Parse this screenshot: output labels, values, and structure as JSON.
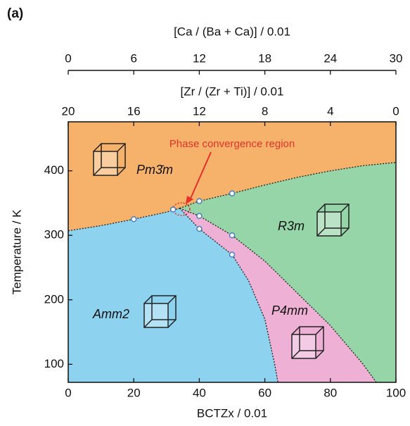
{
  "panel_label": "(a)",
  "chart_data": {
    "type": "scatter",
    "xlabel": "BCTZx / 0.01",
    "ylabel": "Temperature / K",
    "xlim": [
      0,
      100
    ],
    "xticks": [
      0,
      20,
      40,
      60,
      80,
      100
    ],
    "ylim": [
      72,
      476
    ],
    "yticks": [
      100,
      200,
      300,
      400
    ],
    "x2label": "[Zr / (Zr + Ti)] / 0.01",
    "x2lim": [
      20,
      0
    ],
    "x2ticks": [
      20,
      16,
      12,
      8,
      4,
      0
    ],
    "x3label": "[Ca / (Ba + Ca)] / 0.01",
    "x3lim": [
      0,
      30
    ],
    "x3ticks": [
      0,
      6,
      12,
      18,
      24,
      30
    ],
    "annotation": "Phase convergence region",
    "regions": [
      {
        "label": "Pm3̄m",
        "color": "#f6b26b"
      },
      {
        "label": "R3m",
        "color": "#8dd3f0"
      },
      {
        "label": "Amm2",
        "color": "#efb0d6"
      },
      {
        "label": "P4mm",
        "color": "#95d5a8"
      }
    ],
    "boundaries": [
      {
        "x": [
          0,
          10,
          20,
          30,
          34
        ],
        "y": [
          307,
          315,
          325,
          336,
          342
        ]
      },
      {
        "x": [
          34,
          40,
          50,
          60,
          70,
          80,
          90,
          100
        ],
        "y": [
          342,
          353,
          365,
          378,
          390,
          400,
          408,
          413
        ]
      },
      {
        "x": [
          34,
          40,
          50,
          55,
          60,
          63,
          64
        ],
        "y": [
          342,
          310,
          270,
          230,
          170,
          100,
          72
        ]
      },
      {
        "x": [
          34,
          40,
          50,
          60,
          70,
          80,
          90,
          94
        ],
        "y": [
          342,
          330,
          300,
          260,
          210,
          160,
          100,
          72
        ]
      }
    ],
    "x": [
      20,
      32,
      40,
      40,
      40,
      50,
      50,
      50
    ],
    "y": [
      325,
      340,
      353,
      330,
      310,
      365,
      300,
      270
    ],
    "color": "#4a7fc0"
  }
}
